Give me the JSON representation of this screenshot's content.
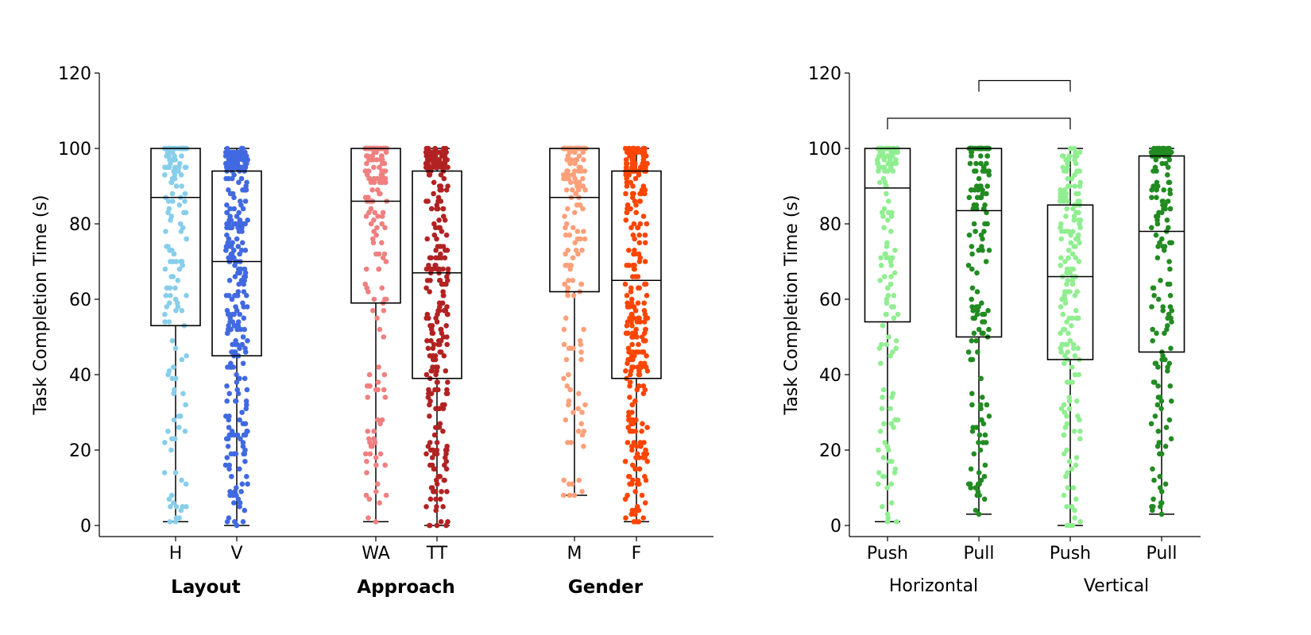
{
  "chart_data": [
    {
      "type": "box",
      "ylabel": "Task Completion Time (s)",
      "ylim": [
        0,
        120
      ],
      "yticks": [
        0,
        20,
        40,
        60,
        80,
        100,
        120
      ],
      "groups": [
        {
          "label": "Layout",
          "boxes": [
            {
              "name": "H",
              "color": "#87CEEB",
              "min": 1,
              "q1": 53,
              "median": 87,
              "q3": 100,
              "max": 100,
              "n": 170
            },
            {
              "name": "V",
              "color": "#4169E1",
              "min": 0,
              "q1": 45,
              "median": 70,
              "q3": 94,
              "max": 100,
              "n": 300
            }
          ]
        },
        {
          "label": "Approach",
          "boxes": [
            {
              "name": "WA",
              "color": "#F08080",
              "min": 1,
              "q1": 59,
              "median": 86,
              "q3": 100,
              "max": 100,
              "n": 190
            },
            {
              "name": "TT",
              "color": "#B22222",
              "min": 0,
              "q1": 39,
              "median": 67,
              "q3": 94,
              "max": 100,
              "n": 280
            }
          ]
        },
        {
          "label": "Gender",
          "boxes": [
            {
              "name": "M",
              "color": "#FFA07A",
              "min": 8,
              "q1": 62,
              "median": 87,
              "q3": 100,
              "max": 100,
              "n": 180
            },
            {
              "name": "F",
              "color": "#FF4500",
              "min": 1,
              "q1": 39,
              "median": 65,
              "q3": 94,
              "max": 100,
              "n": 300
            }
          ]
        }
      ]
    },
    {
      "type": "box",
      "ylabel": "Task Completion Time (s)",
      "ylim": [
        0,
        120
      ],
      "yticks": [
        0,
        20,
        40,
        60,
        80,
        100,
        120
      ],
      "groups": [
        {
          "label": "Horizontal",
          "boxes": [
            {
              "name": "Push",
              "color": "#90EE90",
              "min": 1,
              "q1": 54,
              "median": 89.5,
              "q3": 100,
              "max": 100,
              "n": 160
            },
            {
              "name": "Pull",
              "color": "#228B22",
              "min": 3,
              "q1": 50,
              "median": 83.5,
              "q3": 100,
              "max": 100,
              "n": 170
            }
          ]
        },
        {
          "label": "Vertical",
          "boxes": [
            {
              "name": "Push",
              "color": "#90EE90",
              "min": 0,
              "q1": 44,
              "median": 66,
              "q3": 85,
              "max": 100,
              "n": 180
            },
            {
              "name": "Pull",
              "color": "#228B22",
              "min": 3,
              "q1": 46,
              "median": 78,
              "q3": 98,
              "max": 100,
              "n": 170
            }
          ]
        }
      ],
      "significance_brackets": [
        {
          "from": "Horizontal Push",
          "to": "Vertical Push",
          "y": 108
        },
        {
          "from": "Horizontal Pull",
          "to": "Vertical Push",
          "y": 118
        }
      ]
    }
  ]
}
